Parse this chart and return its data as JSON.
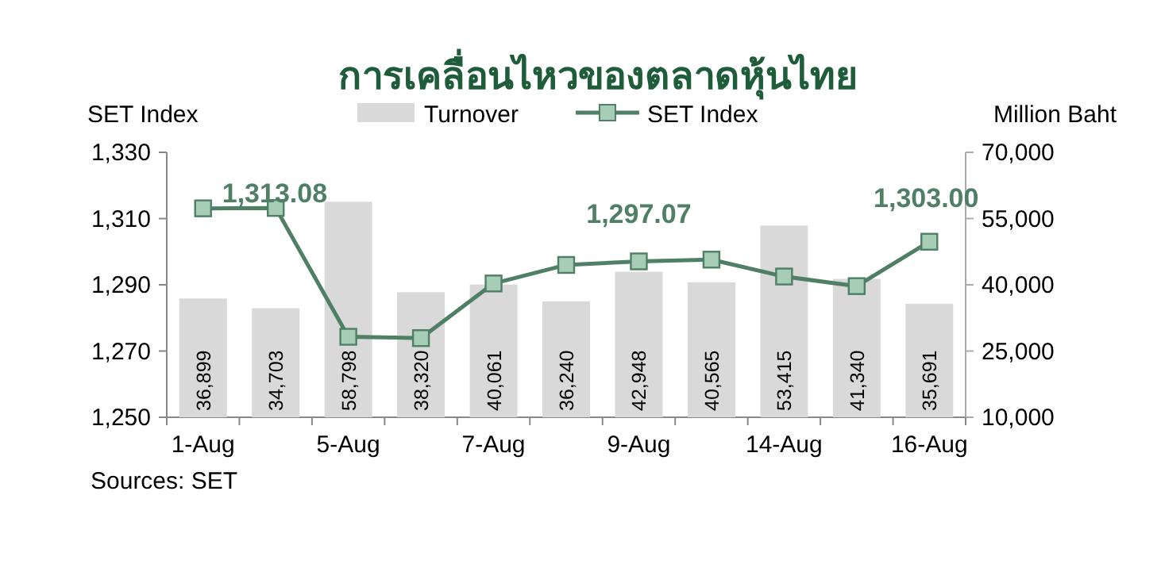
{
  "chart_data": {
    "type": "bar",
    "title": "การเคลื่อนไหวของตลาดหุ้นไทย",
    "categories": [
      "1-Aug",
      null,
      "5-Aug",
      null,
      "7-Aug",
      null,
      "9-Aug",
      null,
      "14-Aug",
      null,
      "16-Aug"
    ],
    "series": [
      {
        "name": "Turnover",
        "axis": "y2",
        "color": "#d9d9d9",
        "values": [
          36899,
          34703,
          58798,
          38320,
          40061,
          36240,
          42948,
          40565,
          53415,
          41340,
          35691
        ],
        "value_labels": [
          "36,899",
          "34,703",
          "58,798",
          "38,320",
          "40,061",
          "36,240",
          "42,948",
          "40,565",
          "53,415",
          "41,340",
          "35,691"
        ]
      },
      {
        "name": "SET Index",
        "type": "line",
        "color": "#4f7f64",
        "marker": "square",
        "values": [
          1313.08,
          1313.2,
          1274.3,
          1273.9,
          1290.4,
          1296.0,
          1297.07,
          1297.6,
          1292.5,
          1289.6,
          1303.0
        ],
        "value_labels": [
          "1,313.08",
          null,
          null,
          null,
          null,
          null,
          "1,297.07",
          null,
          null,
          null,
          "1,303.00"
        ]
      }
    ],
    "ylabel": "SET Index",
    "y2label": "Million Baht",
    "ylim": [
      1250,
      1330
    ],
    "yticks": [
      {
        "value": 1250,
        "label": "1,250"
      },
      {
        "value": 1270,
        "label": "1,270"
      },
      {
        "value": 1290,
        "label": "1,290"
      },
      {
        "value": 1310,
        "label": "1,310"
      },
      {
        "value": 1330,
        "label": "1,330"
      }
    ],
    "y2lim": [
      10000,
      70000
    ],
    "y2ticks": [
      {
        "value": 10000,
        "label": "10,000"
      },
      {
        "value": 25000,
        "label": "25,000"
      },
      {
        "value": 40000,
        "label": "40,000"
      },
      {
        "value": 55000,
        "label": "55,000"
      },
      {
        "value": 70000,
        "label": "70,000"
      }
    ],
    "legend": "top",
    "annotations": [
      "Sources: SET"
    ]
  }
}
